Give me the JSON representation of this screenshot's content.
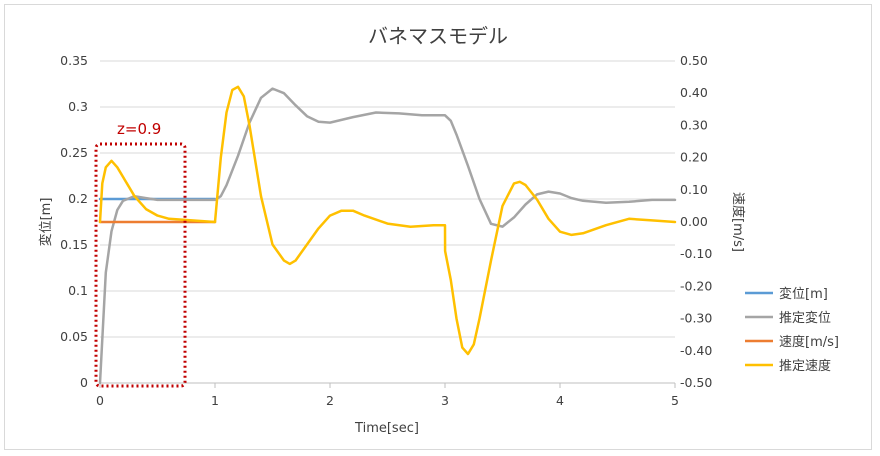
{
  "chart_data": {
    "type": "line",
    "title": "バネマスモデル",
    "xlabel": "Time[sec]",
    "ylabel_left": "変位[m]",
    "ylabel_right": "速度[m/s]",
    "x_ticks": [
      "0",
      "1",
      "2",
      "3",
      "4",
      "5"
    ],
    "y_left_ticks": [
      "0",
      "0.05",
      "0.1",
      "0.15",
      "0.2",
      "0.25",
      "0.3",
      "0.35"
    ],
    "y_right_ticks": [
      "-0.50",
      "-0.40",
      "-0.30",
      "-0.20",
      "-0.10",
      "0.00",
      "0.10",
      "0.20",
      "0.30",
      "0.40",
      "0.50"
    ],
    "xlim": [
      0,
      5
    ],
    "ylim_left": [
      0,
      0.35
    ],
    "ylim_right": [
      -0.5,
      0.5
    ],
    "grid": true,
    "legend_position": "right",
    "annotation": "z=0.9",
    "series": [
      {
        "name": "変位[m]",
        "axis": "left",
        "color": "#5b9bd5",
        "x": [
          0,
          1
        ],
        "y": [
          0.2,
          0.2
        ]
      },
      {
        "name": "推定変位",
        "axis": "left",
        "color": "#a5a5a5",
        "x": [
          0,
          0.05,
          0.1,
          0.15,
          0.2,
          0.3,
          0.4,
          0.5,
          0.6,
          0.8,
          1.0,
          1.05,
          1.1,
          1.2,
          1.3,
          1.4,
          1.5,
          1.6,
          1.7,
          1.8,
          1.9,
          2.0,
          2.2,
          2.4,
          2.6,
          2.8,
          3.0,
          3.05,
          3.1,
          3.2,
          3.3,
          3.4,
          3.5,
          3.6,
          3.7,
          3.8,
          3.9,
          4.0,
          4.1,
          4.2,
          4.4,
          4.6,
          4.8,
          5.0
        ],
        "y": [
          0,
          0.12,
          0.165,
          0.188,
          0.198,
          0.203,
          0.201,
          0.199,
          0.199,
          0.199,
          0.199,
          0.203,
          0.215,
          0.247,
          0.283,
          0.31,
          0.32,
          0.315,
          0.302,
          0.29,
          0.284,
          0.283,
          0.289,
          0.294,
          0.293,
          0.291,
          0.291,
          0.285,
          0.27,
          0.236,
          0.2,
          0.173,
          0.17,
          0.18,
          0.194,
          0.205,
          0.208,
          0.206,
          0.201,
          0.198,
          0.196,
          0.197,
          0.199,
          0.199
        ]
      },
      {
        "name": "速度[m/s]",
        "axis": "right",
        "color": "#ed7d31",
        "x": [
          0,
          1
        ],
        "y": [
          0,
          0
        ]
      },
      {
        "name": "推定速度",
        "axis": "right",
        "color": "#ffc000",
        "x": [
          0,
          0.02,
          0.05,
          0.1,
          0.15,
          0.2,
          0.3,
          0.4,
          0.5,
          0.6,
          0.8,
          0.999,
          1.0,
          1.05,
          1.1,
          1.15,
          1.2,
          1.25,
          1.3,
          1.4,
          1.5,
          1.6,
          1.65,
          1.7,
          1.8,
          1.9,
          2.0,
          2.1,
          2.2,
          2.3,
          2.5,
          2.7,
          2.9,
          3.0,
          3.001,
          3.05,
          3.1,
          3.15,
          3.2,
          3.25,
          3.3,
          3.4,
          3.5,
          3.6,
          3.65,
          3.7,
          3.8,
          3.9,
          4.0,
          4.1,
          4.2,
          4.4,
          4.6,
          4.8,
          5.0
        ],
        "y": [
          0,
          0.12,
          0.17,
          0.19,
          0.17,
          0.14,
          0.08,
          0.04,
          0.02,
          0.01,
          0.005,
          0.0,
          0.0,
          0.2,
          0.34,
          0.41,
          0.42,
          0.39,
          0.3,
          0.08,
          -0.07,
          -0.12,
          -0.13,
          -0.12,
          -0.07,
          -0.02,
          0.02,
          0.035,
          0.035,
          0.02,
          -0.005,
          -0.015,
          -0.01,
          -0.01,
          -0.09,
          -0.18,
          -0.3,
          -0.39,
          -0.41,
          -0.38,
          -0.3,
          -0.12,
          0.05,
          0.12,
          0.125,
          0.115,
          0.07,
          0.01,
          -0.03,
          -0.04,
          -0.035,
          -0.01,
          0.01,
          0.005,
          0.0
        ]
      }
    ]
  }
}
